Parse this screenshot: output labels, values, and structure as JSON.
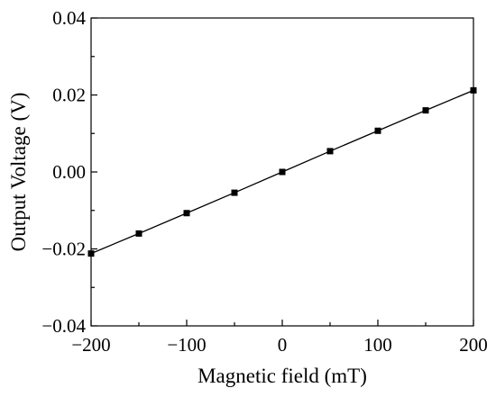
{
  "chart_data": {
    "type": "line",
    "title": "",
    "xlabel": "Magnetic field (mT)",
    "ylabel": "Output Voltage (V)",
    "xlim": [
      -200,
      200
    ],
    "ylim": [
      -0.04,
      0.04
    ],
    "x_ticks": [
      -200,
      -100,
      0,
      100,
      200
    ],
    "x_tick_labels": [
      "-200",
      "-100",
      "0",
      "100",
      "200"
    ],
    "y_ticks": [
      0.04,
      0.02,
      0.0,
      -0.02,
      -0.04
    ],
    "y_tick_labels": [
      "0.04",
      "0.02",
      "0.00",
      "-0.02",
      "-0.04"
    ],
    "grid": false,
    "legend": "none",
    "series": [
      {
        "x": [
          -200,
          -150,
          -100,
          -50,
          0,
          50,
          100,
          150,
          200
        ],
        "y": [
          -0.0212,
          -0.016,
          -0.0107,
          -0.0054,
          0.0,
          0.0054,
          0.0107,
          0.016,
          0.0212
        ],
        "marker": "square",
        "color": "#000000"
      }
    ]
  }
}
